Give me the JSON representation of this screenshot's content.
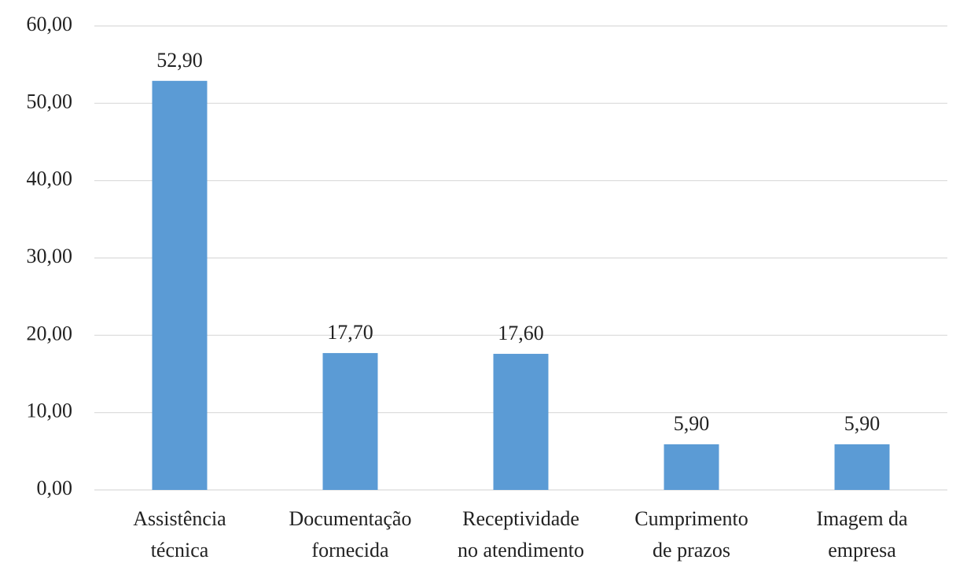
{
  "chart_data": {
    "type": "bar",
    "title": "",
    "xlabel": "",
    "ylabel": "",
    "categories": [
      [
        "Assistência",
        "técnica"
      ],
      [
        "Documentação",
        "fornecida"
      ],
      [
        "Receptividade",
        "no atendimento"
      ],
      [
        "Cumprimento",
        "de prazos"
      ],
      [
        "Imagem da",
        "empresa"
      ]
    ],
    "values": [
      52.9,
      17.7,
      17.6,
      5.9,
      5.9
    ],
    "data_labels": [
      "52,90",
      "17,70",
      "17,60",
      "5,90",
      "5,90"
    ],
    "ylim": [
      0,
      60
    ],
    "yticks": [
      0,
      10,
      20,
      30,
      40,
      50,
      60
    ],
    "ytick_labels": [
      "0,00",
      "10,00",
      "20,00",
      "30,00",
      "40,00",
      "50,00",
      "60,00"
    ],
    "grid": true,
    "legend": "none",
    "bar_color": "#5b9bd5"
  }
}
